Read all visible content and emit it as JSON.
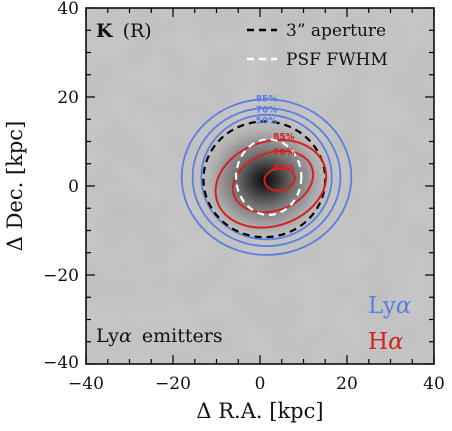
{
  "figure": {
    "panel_label_bold": "K",
    "panel_label_rest": "(R)",
    "bottom_left_text_a": "Ly",
    "bottom_left_text_alpha": "α",
    "bottom_left_text_b": "emitters",
    "x_axis_title": "Δ R.A. [kpc]",
    "y_axis_title": "Δ Dec. [kpc]",
    "x_ticks": [
      "−40",
      "−20",
      "0",
      "20",
      "40"
    ],
    "y_ticks": [
      "40",
      "20",
      "0",
      "−20",
      "−40"
    ],
    "x_range": [
      -40,
      40
    ],
    "y_range": [
      -40,
      40
    ],
    "legend": {
      "aperture": "3” aperture",
      "psf": "PSF FWHM"
    },
    "key": {
      "lya_a": "Ly",
      "lya_alpha": "α",
      "ha_a": "H",
      "ha_alpha": "α"
    },
    "contour_levels": {
      "lya": [
        "85%",
        "70%",
        "50%"
      ],
      "ha": [
        "85%",
        "70%",
        "50%"
      ]
    },
    "colors": {
      "lya": "#5b7fe0",
      "ha": "#d42020",
      "aperture": "#000000",
      "psf": "#ffffff",
      "background": "#bdbdbd"
    }
  }
}
